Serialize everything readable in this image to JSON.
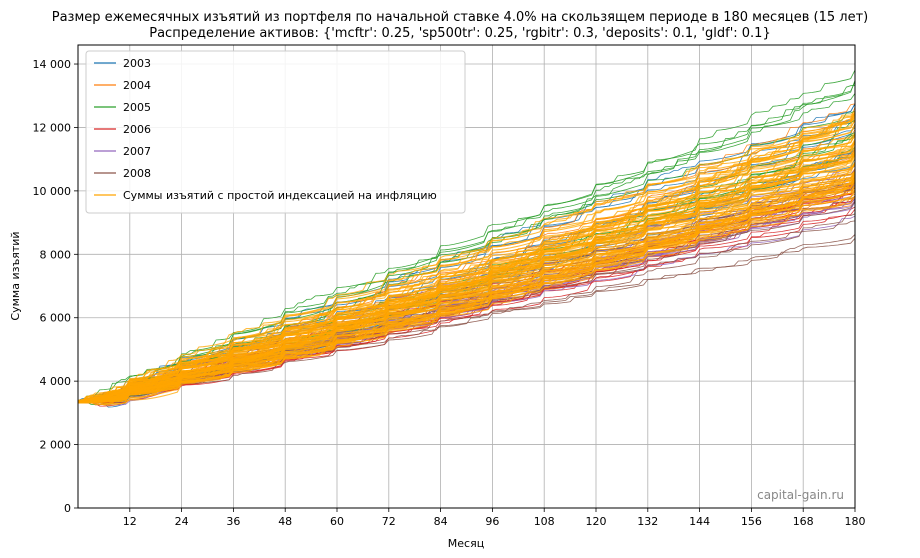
{
  "chart_data": {
    "type": "line",
    "title": "Размер ежемесячных изъятий из портфеля по начальной ставке 4.0% на скользящем периоде в 180 месяцев (15 лет)",
    "subtitle": "Распределение активов: {'mcftr': 0.25, 'sp500tr': 0.25, 'rgbitr': 0.3, 'deposits': 0.1, 'gldf': 0.1}",
    "xlabel": "Месяц",
    "ylabel": "Сумма изъятий",
    "xlim": [
      0,
      180
    ],
    "ylim": [
      0,
      14600
    ],
    "x_ticks": [
      12,
      24,
      36,
      48,
      60,
      72,
      84,
      96,
      108,
      120,
      132,
      144,
      156,
      168,
      180
    ],
    "x_tick_labels": [
      "12",
      "24",
      "36",
      "48",
      "60",
      "72",
      "84",
      "96",
      "108",
      "120",
      "132",
      "144",
      "156",
      "168",
      "180"
    ],
    "y_ticks": [
      0,
      2000,
      4000,
      6000,
      8000,
      10000,
      12000,
      14000
    ],
    "y_tick_labels": [
      "0",
      "2 000",
      "4 000",
      "6 000",
      "8 000",
      "10 000",
      "12 000",
      "14 000"
    ],
    "grid": true,
    "legend_position": "top-left",
    "watermark": "capital-gain.ru",
    "series": [
      {
        "name": "2003",
        "color": "#1f77b4",
        "start": 3350,
        "end_range": [
          11000,
          13100
        ],
        "count": 12
      },
      {
        "name": "2004",
        "color": "#ff7f0e",
        "start": 3350,
        "end_range": [
          9700,
          12800
        ],
        "count": 12
      },
      {
        "name": "2005",
        "color": "#2ca02c",
        "start": 3350,
        "end_range": [
          11100,
          14100
        ],
        "count": 12
      },
      {
        "name": "2006",
        "color": "#d62728",
        "start": 3350,
        "end_range": [
          9100,
          10600
        ],
        "count": 12
      },
      {
        "name": "2007",
        "color": "#9467bd",
        "start": 3350,
        "end_range": [
          9000,
          10800
        ],
        "count": 12
      },
      {
        "name": "2008",
        "color": "#8c564b",
        "start": 3350,
        "end_range": [
          8300,
          11000
        ],
        "count": 12
      },
      {
        "name": "Суммы изъятий с простой индексацией на инфляцию",
        "color": "#ffa500",
        "start": 3350,
        "end_range": [
          9800,
          12500
        ],
        "count": 72
      }
    ]
  }
}
